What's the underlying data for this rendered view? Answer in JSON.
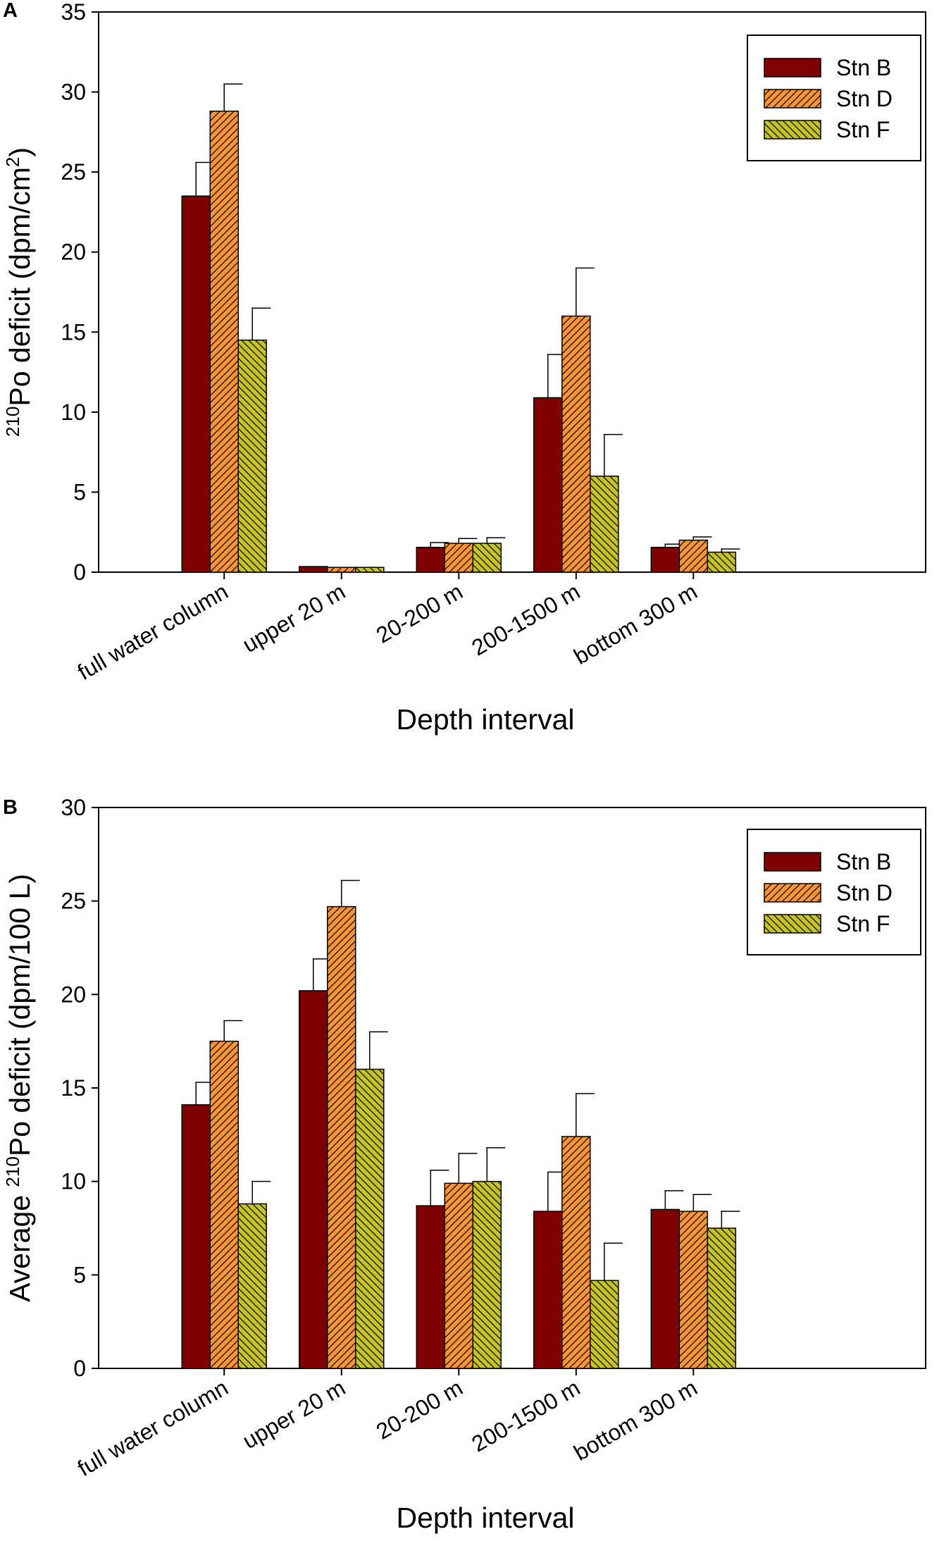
{
  "chart_data": [
    {
      "panel": "A",
      "type": "bar",
      "categories": [
        "full water column",
        "upper 20 m",
        "20-200 m",
        "200-1500 m",
        "bottom 300 m"
      ],
      "series": [
        {
          "name": "Stn B",
          "color": "#7f0000",
          "pattern": "solid",
          "values": [
            23.5,
            0.35,
            1.55,
            10.9,
            1.55
          ],
          "errors": [
            2.1,
            0.0,
            0.3,
            2.7,
            0.2
          ]
        },
        {
          "name": "Stn D",
          "color": "#f7953a",
          "pattern": "hatch-diagonal",
          "values": [
            28.8,
            0.3,
            1.8,
            16.0,
            2.0
          ],
          "errors": [
            1.7,
            0.0,
            0.3,
            3.0,
            0.2
          ]
        },
        {
          "name": "Stn F",
          "color": "#c6c22a",
          "pattern": "hatch-diagonal-reverse",
          "values": [
            14.5,
            0.3,
            1.8,
            6.0,
            1.25
          ],
          "errors": [
            2.0,
            0.0,
            0.35,
            2.6,
            0.2
          ]
        }
      ],
      "ylim": [
        0,
        35
      ],
      "yticks": [
        0,
        5,
        10,
        15,
        20,
        25,
        30,
        35
      ],
      "xlabel": "Depth interval",
      "ylabel_parts": {
        "sup1": "210",
        "main": "Po deficit (dpm/cm",
        "sup2": "2",
        "end": ")"
      },
      "legend_position": "top-right"
    },
    {
      "panel": "B",
      "type": "bar",
      "categories": [
        "full water column",
        "upper 20 m",
        "20-200 m",
        "200-1500 m",
        "bottom 300 m"
      ],
      "series": [
        {
          "name": "Stn B",
          "color": "#7f0000",
          "pattern": "solid",
          "values": [
            14.1,
            20.2,
            8.7,
            8.4,
            8.5
          ],
          "errors": [
            1.2,
            1.7,
            1.9,
            2.1,
            1.0
          ]
        },
        {
          "name": "Stn D",
          "color": "#f7953a",
          "pattern": "hatch-diagonal",
          "values": [
            17.5,
            24.7,
            9.9,
            12.4,
            8.4
          ],
          "errors": [
            1.1,
            1.4,
            1.6,
            2.3,
            0.9
          ]
        },
        {
          "name": "Stn F",
          "color": "#c6c22a",
          "pattern": "hatch-diagonal-reverse",
          "values": [
            8.8,
            16.0,
            10.0,
            4.7,
            7.5
          ],
          "errors": [
            1.2,
            2.0,
            1.8,
            2.0,
            0.9
          ]
        }
      ],
      "ylim": [
        0,
        30
      ],
      "yticks": [
        0,
        5,
        10,
        15,
        20,
        25,
        30
      ],
      "xlabel": "Depth interval",
      "ylabel_parts": {
        "pre": "Average ",
        "sup1": "210",
        "main": "Po deficit (dpm/100 L)"
      },
      "legend_position": "top-right"
    }
  ]
}
